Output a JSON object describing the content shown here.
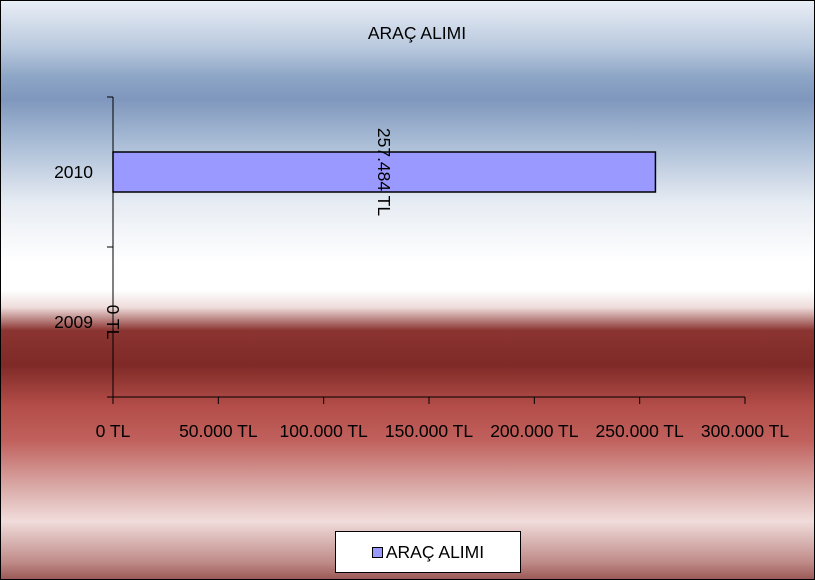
{
  "chart_data": {
    "type": "bar",
    "orientation": "horizontal",
    "title": "ARAÇ ALIMI",
    "categories": [
      "2010",
      "2009"
    ],
    "series": [
      {
        "name": "ARAÇ ALIMI",
        "values": [
          257484,
          0
        ],
        "value_labels": [
          "257.484 TL",
          "0 TL"
        ],
        "color": "#9999ff"
      }
    ],
    "xlim": [
      0,
      300000
    ],
    "x_ticks": [
      0,
      50000,
      100000,
      150000,
      200000,
      250000,
      300000
    ],
    "x_tick_labels": [
      "0 TL",
      "50.000 TL",
      "100.000 TL",
      "150.000 TL",
      "200.000 TL",
      "250.000 TL",
      "300.000 TL"
    ],
    "grid": false,
    "legend_position": "bottom"
  }
}
